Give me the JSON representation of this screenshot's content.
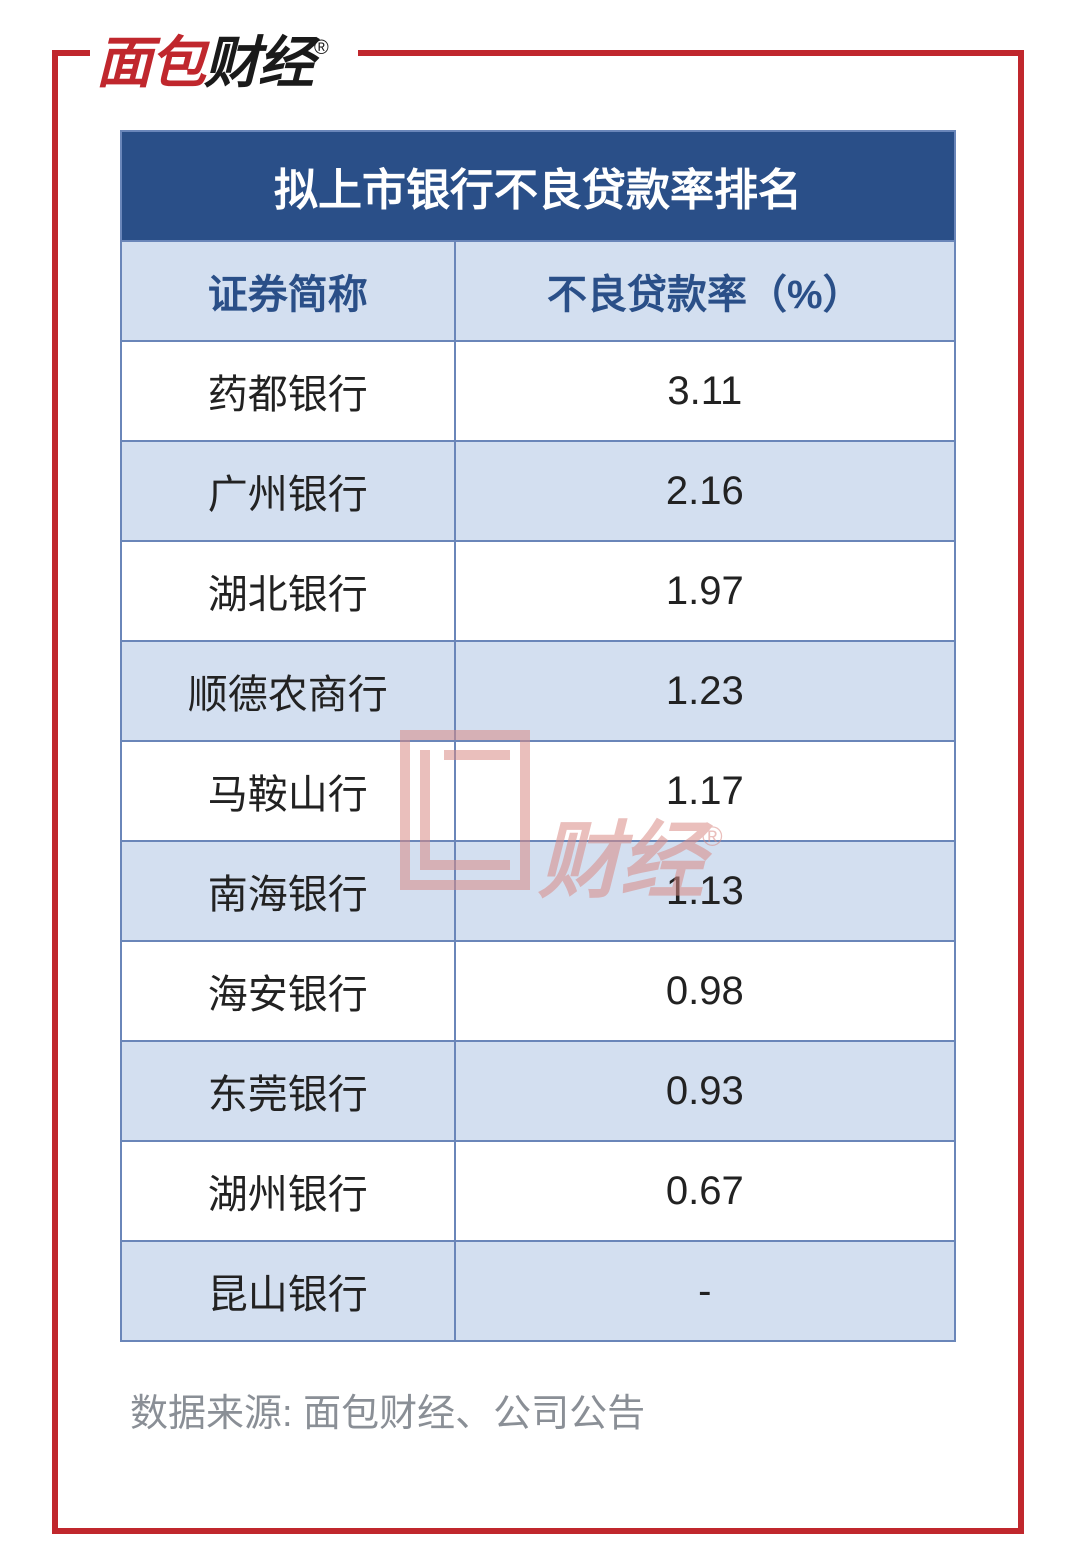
{
  "logo": {
    "part1": "面",
    "part2": "包",
    "part3": "财经",
    "registered": "®"
  },
  "watermark": {
    "text": "财经",
    "registered": "®"
  },
  "table": {
    "type": "table",
    "title": "拟上市银行不良贷款率排名",
    "columns": [
      "证券简称",
      "不良贷款率（%）"
    ],
    "column_widths_pct": [
      40,
      60
    ],
    "rows": [
      [
        "药都银行",
        "3.11"
      ],
      [
        "广州银行",
        "2.16"
      ],
      [
        "湖北银行",
        "1.97"
      ],
      [
        "顺德农商行",
        "1.23"
      ],
      [
        "马鞍山行",
        "1.17"
      ],
      [
        "南海银行",
        "1.13"
      ],
      [
        "海安银行",
        "0.98"
      ],
      [
        "东莞银行",
        "0.93"
      ],
      [
        "湖州银行",
        "0.67"
      ],
      [
        "昆山银行",
        "-"
      ]
    ],
    "colors": {
      "title_bg": "#2a4f88",
      "title_fg": "#ffffff",
      "header_bg": "#d3dff0",
      "header_fg": "#2a4f88",
      "row_even_bg": "#ffffff",
      "row_odd_bg": "#d3dff0",
      "cell_fg": "#222222",
      "border": "#6a86b9",
      "frame_border": "#c0272d"
    },
    "fontsize": {
      "title": 44,
      "header": 40,
      "cell": 40
    }
  },
  "source": "数据来源: 面包财经、公司公告"
}
